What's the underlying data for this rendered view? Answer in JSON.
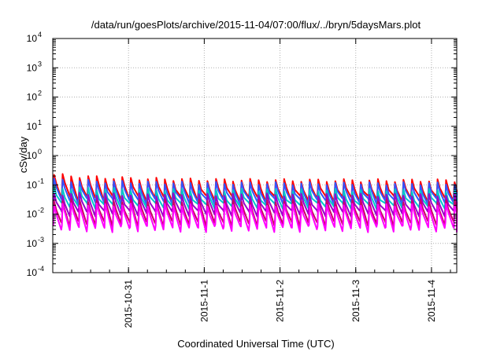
{
  "chart_data": {
    "type": "line",
    "title": "/data/run/goesPlots/archive/2015-11-04/07:00/flux/../bryn/5daysMars.plot",
    "xlabel": "Coordinated Universal Time (UTC)",
    "ylabel": "cSv/day",
    "yscale": "log",
    "ylim": [
      0.0001,
      10000
    ],
    "y_ticks": [
      {
        "exp": "-4",
        "value": 0.0001
      },
      {
        "exp": "-3",
        "value": 0.001
      },
      {
        "exp": "-2",
        "value": 0.01
      },
      {
        "exp": "-1",
        "value": 0.1
      },
      {
        "exp": "0",
        "value": 1
      },
      {
        "exp": "1",
        "value": 10
      },
      {
        "exp": "2",
        "value": 100
      },
      {
        "exp": "3",
        "value": 1000
      },
      {
        "exp": "4",
        "value": 10000
      }
    ],
    "y_tick_base": "10",
    "xlim": [
      "2015-10-30T00:00",
      "2015-11-04T08:00"
    ],
    "x_ticks": [
      {
        "label": "2015-10-31",
        "date": "2015-10-31T00:00"
      },
      {
        "label": "2015-11-1",
        "date": "2015-11-01T00:00"
      },
      {
        "label": "2015-11-2",
        "date": "2015-11-02T00:00"
      },
      {
        "label": "2015-11-3",
        "date": "2015-11-03T00:00"
      },
      {
        "label": "2015-11-4",
        "date": "2015-11-04T00:00"
      }
    ],
    "grid": true,
    "legend": "none",
    "pattern": "sawtooth",
    "cycle_hours": 2.7,
    "series": [
      {
        "color": "#ff0000",
        "peak_start": 0.22,
        "peak": 0.14,
        "trough": 0.035
      },
      {
        "color": "#3355ff",
        "peak_start": 0.15,
        "peak": 0.11,
        "trough": 0.028
      },
      {
        "color": "#00c8c8",
        "peak_start": 0.08,
        "peak": 0.065,
        "trough": 0.02
      },
      {
        "color": "#9900cc",
        "peak_start": 0.05,
        "peak": 0.045,
        "trough": 0.011
      },
      {
        "color": "#cc0066",
        "peak_start": 0.03,
        "peak": 0.028,
        "trough": 0.0048
      },
      {
        "color": "#ff00ff",
        "peak_start": 0.022,
        "peak": 0.02,
        "trough": 0.0032
      }
    ]
  }
}
